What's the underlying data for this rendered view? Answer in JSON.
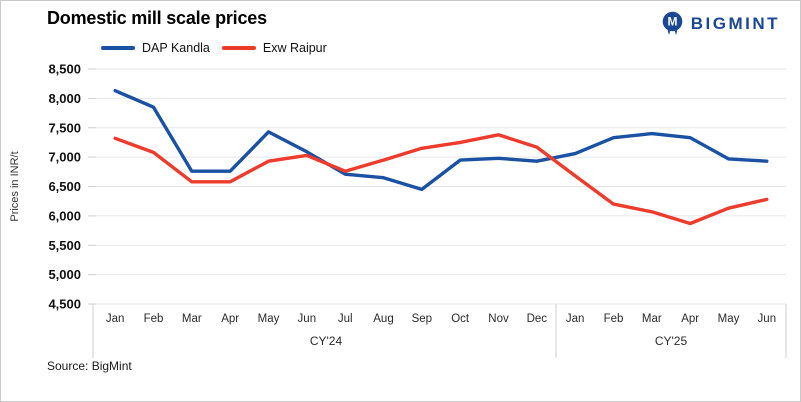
{
  "header": {
    "title": "Domestic mill scale prices",
    "logo_text": "BIGMINT",
    "logo_color": "#1b4794"
  },
  "footer": {
    "source": "Source: BigMint"
  },
  "chart_data": {
    "type": "line",
    "title": "Domestic mill scale prices",
    "xlabel": "",
    "ylabel": "Prices in INR/t",
    "ylim": [
      4500,
      8500
    ],
    "ytick_step": 500,
    "grid": true,
    "legend_position": "top",
    "categories": [
      "Jan",
      "Feb",
      "Mar",
      "Apr",
      "May",
      "Jun",
      "Jul",
      "Aug",
      "Sep",
      "Oct",
      "Nov",
      "Dec",
      "Jan",
      "Feb",
      "Mar",
      "Apr",
      "May",
      "Jun"
    ],
    "category_groups": [
      {
        "label": "CY'24",
        "span": 12
      },
      {
        "label": "CY'25",
        "span": 6
      }
    ],
    "series": [
      {
        "name": "DAP Kandla",
        "color": "#1b51a3",
        "values": [
          8130,
          7850,
          6760,
          6760,
          7430,
          7090,
          6710,
          6650,
          6450,
          6950,
          6980,
          6930,
          7060,
          7330,
          7400,
          7330,
          6970,
          6930
        ]
      },
      {
        "name": "Exw Raipur",
        "color": "#ed3b2c",
        "values": [
          7320,
          7080,
          6580,
          6580,
          6930,
          7030,
          6760,
          6950,
          7150,
          7250,
          7380,
          7170,
          6680,
          6200,
          6070,
          5870,
          6130,
          6280
        ]
      }
    ]
  }
}
